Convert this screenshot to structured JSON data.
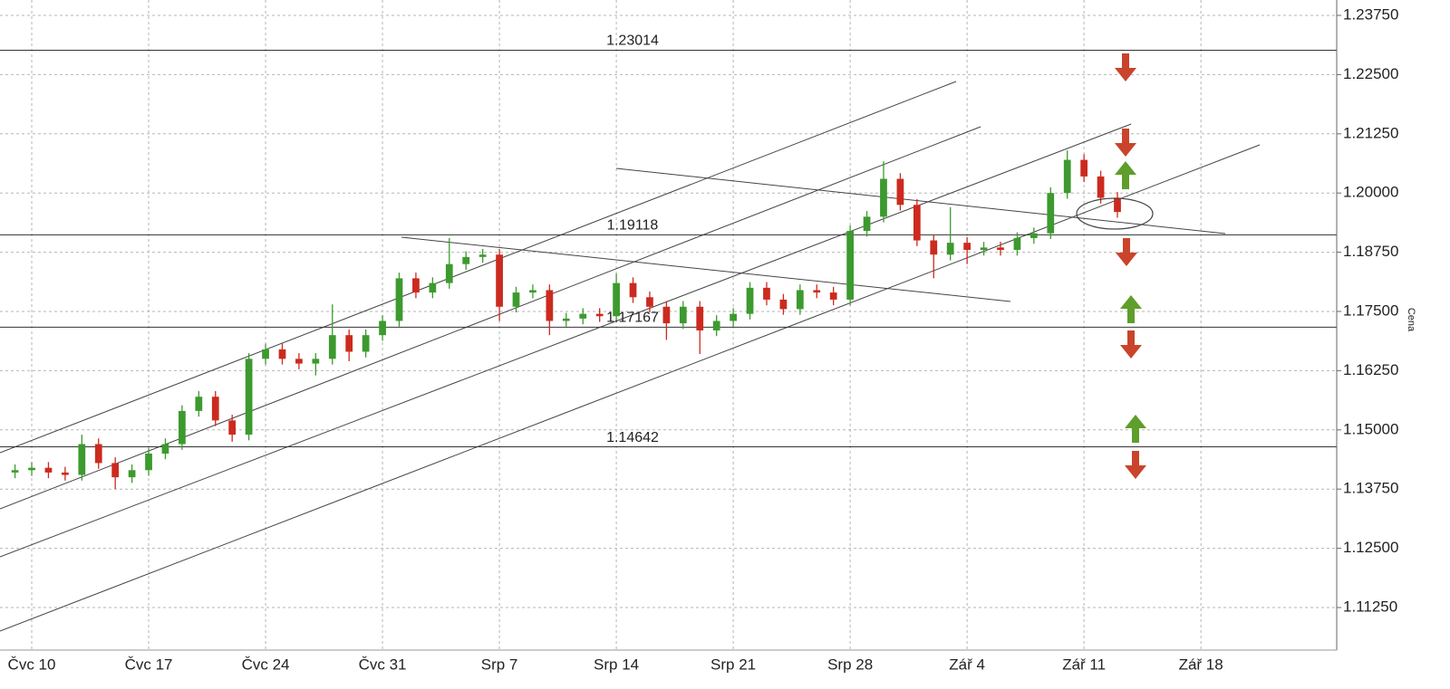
{
  "chart_data": {
    "type": "candlestick",
    "y_label": "Cena",
    "x": [
      -1,
      0,
      1,
      2,
      3,
      4,
      5,
      6,
      7,
      8,
      9,
      10,
      11,
      12,
      13,
      14,
      15,
      16,
      17,
      18,
      19,
      20,
      21,
      22,
      23,
      24,
      25,
      26,
      27,
      28,
      29,
      30,
      31,
      32,
      33,
      34,
      35,
      36,
      37,
      38,
      39,
      40,
      41,
      42,
      43,
      44,
      45,
      46,
      47,
      48,
      49,
      50,
      51,
      52,
      53,
      54,
      55,
      56,
      57,
      58,
      59,
      60,
      61,
      62,
      63,
      64,
      65
    ],
    "open": [
      1.141,
      1.1415,
      1.142,
      1.141,
      1.1405,
      1.147,
      1.143,
      1.14,
      1.1415,
      1.145,
      1.147,
      1.154,
      1.157,
      1.152,
      1.149,
      1.165,
      1.167,
      1.165,
      1.164,
      1.165,
      1.17,
      1.1665,
      1.17,
      1.173,
      1.182,
      1.179,
      1.181,
      1.185,
      1.1865,
      1.187,
      1.176,
      1.179,
      1.1795,
      1.173,
      1.1735,
      1.1745,
      1.174,
      1.181,
      1.178,
      1.176,
      1.1725,
      1.176,
      1.171,
      1.173,
      1.1745,
      1.18,
      1.1775,
      1.1755,
      1.1795,
      1.179,
      1.1775,
      1.192,
      1.195,
      1.203,
      1.1975,
      1.19,
      1.187,
      1.1895,
      1.188,
      1.1885,
      1.188,
      1.1905,
      1.1915,
      1.2,
      1.207,
      1.2035,
      1.199
    ],
    "high": [
      1.1427,
      1.1432,
      1.1432,
      1.1422,
      1.149,
      1.1482,
      1.1442,
      1.1427,
      1.1462,
      1.1482,
      1.1552,
      1.1582,
      1.1582,
      1.1532,
      1.1662,
      1.1682,
      1.1682,
      1.1662,
      1.1662,
      1.1765,
      1.1712,
      1.1712,
      1.1742,
      1.1832,
      1.1832,
      1.1822,
      1.1905,
      1.1877,
      1.1882,
      1.1882,
      1.1802,
      1.1807,
      1.1807,
      1.1747,
      1.1757,
      1.1757,
      1.183,
      1.1822,
      1.1792,
      1.1772,
      1.1772,
      1.1772,
      1.1742,
      1.1757,
      1.1812,
      1.1812,
      1.1787,
      1.1807,
      1.1807,
      1.1802,
      1.1932,
      1.1962,
      1.2067,
      1.2042,
      1.1987,
      1.1912,
      1.197,
      1.1907,
      1.1897,
      1.1897,
      1.1917,
      1.1927,
      1.2012,
      1.209,
      1.2082,
      1.2047,
      1.2002
    ],
    "low": [
      1.1398,
      1.1403,
      1.1398,
      1.1393,
      1.1393,
      1.1418,
      1.1375,
      1.1388,
      1.1403,
      1.1438,
      1.1458,
      1.1528,
      1.1508,
      1.1475,
      1.1478,
      1.1638,
      1.1638,
      1.1628,
      1.1615,
      1.1638,
      1.1645,
      1.1653,
      1.1688,
      1.1718,
      1.1778,
      1.1778,
      1.1798,
      1.1838,
      1.1853,
      1.173,
      1.1748,
      1.1778,
      1.17,
      1.1718,
      1.1723,
      1.1728,
      1.1728,
      1.1768,
      1.1748,
      1.169,
      1.1713,
      1.166,
      1.1698,
      1.1718,
      1.1733,
      1.1763,
      1.1743,
      1.1743,
      1.1778,
      1.1763,
      1.1763,
      1.1908,
      1.1938,
      1.1963,
      1.1888,
      1.182,
      1.1858,
      1.185,
      1.1868,
      1.1868,
      1.1868,
      1.1893,
      1.1903,
      1.1988,
      1.2023,
      1.1978,
      1.1948
    ],
    "close": [
      1.1415,
      1.142,
      1.141,
      1.1405,
      1.147,
      1.143,
      1.14,
      1.1415,
      1.145,
      1.147,
      1.154,
      1.157,
      1.152,
      1.149,
      1.165,
      1.167,
      1.165,
      1.164,
      1.165,
      1.17,
      1.1665,
      1.17,
      1.173,
      1.182,
      1.179,
      1.181,
      1.185,
      1.1865,
      1.187,
      1.176,
      1.179,
      1.1795,
      1.173,
      1.1735,
      1.1745,
      1.174,
      1.181,
      1.178,
      1.176,
      1.1725,
      1.176,
      1.171,
      1.173,
      1.1745,
      1.18,
      1.1775,
      1.1755,
      1.1795,
      1.179,
      1.1775,
      1.192,
      1.195,
      1.203,
      1.1975,
      1.19,
      1.187,
      1.1895,
      1.188,
      1.1885,
      1.188,
      1.1905,
      1.1915,
      1.2,
      1.207,
      1.2035,
      1.199,
      1.196
    ],
    "up_color": "#3c9a2e",
    "down_color": "#cc2a1f",
    "levels": [
      1.23014,
      1.19118,
      1.17167,
      1.14642
    ],
    "trendlines": [
      {
        "x": [
          -1.9,
          55.34
        ],
        "y": [
          1.14518,
          1.22355
        ]
      },
      {
        "x": [
          -1.9,
          56.81
        ],
        "y": [
          1.13333,
          1.21399
        ]
      },
      {
        "x": [
          -1.9,
          65.82
        ],
        "y": [
          1.1232,
          1.21456
        ]
      },
      {
        "x": [
          -1.9,
          73.52
        ],
        "y": [
          1.10753,
          1.21017
        ]
      },
      {
        "x": [
          22.14,
          58.6
        ],
        "y": [
          1.19067,
          1.1771
        ]
      },
      {
        "x": [
          35.0,
          71.46
        ],
        "y": [
          1.2052,
          1.19144
        ]
      }
    ],
    "xlim": [
      -1.9,
      78.13
    ],
    "ylim": [
      1.10352,
      1.24075
    ],
    "xticks": [
      {
        "value": 0,
        "label": "Čvc 10"
      },
      {
        "value": 7,
        "label": "Čvc 17"
      },
      {
        "value": 14,
        "label": "Čvc 24"
      },
      {
        "value": 21,
        "label": "Čvc 31"
      },
      {
        "value": 28,
        "label": "Srp 7"
      },
      {
        "value": 35,
        "label": "Srp 14"
      },
      {
        "value": 42,
        "label": "Srp 21"
      },
      {
        "value": 49,
        "label": "Srp 28"
      },
      {
        "value": 56,
        "label": "Zář 4"
      },
      {
        "value": 63,
        "label": "Zář 11"
      },
      {
        "value": 70,
        "label": "Zář 18"
      }
    ],
    "yticks": [
      {
        "value": 1.2375,
        "label": "1.23750"
      },
      {
        "value": 1.225,
        "label": "1.22500"
      },
      {
        "value": 1.2125,
        "label": "1.21250"
      },
      {
        "value": 1.2,
        "label": "1.20000"
      },
      {
        "value": 1.1875,
        "label": "1.18750"
      },
      {
        "value": 1.175,
        "label": "1.17500"
      },
      {
        "value": 1.1625,
        "label": "1.16250"
      },
      {
        "value": 1.15,
        "label": "1.15000"
      },
      {
        "value": 1.1375,
        "label": "1.13750"
      },
      {
        "value": 1.125,
        "label": "1.12500"
      },
      {
        "value": 1.1125,
        "label": "1.11250"
      }
    ],
    "grid": true
  }
}
